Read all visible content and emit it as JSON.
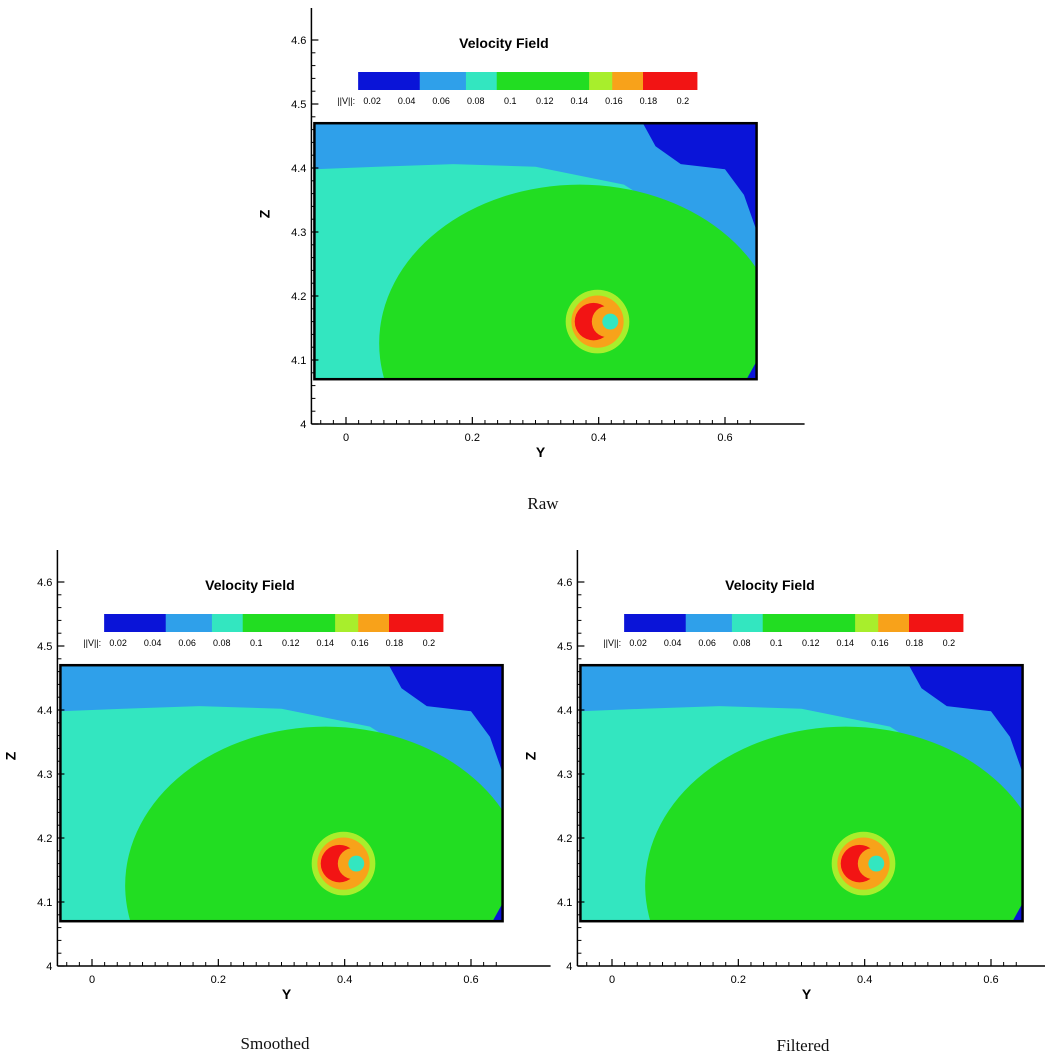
{
  "colors": {
    "levels": [
      "#0a14d8",
      "#2fa0ea",
      "#33e6c0",
      "#22dd22",
      "#a8ee2c",
      "#f8a21a",
      "#f21414"
    ],
    "frame": "#000000"
  },
  "chart_data": [
    {
      "type": "heatmap",
      "title": "Velocity Field",
      "caption": "Raw",
      "xlabel": "Y",
      "ylabel": "Z",
      "xlim": [
        -0.05,
        0.65
      ],
      "ylim": [
        4.0,
        4.65
      ],
      "field_extent": {
        "x": [
          -0.05,
          0.65
        ],
        "y": [
          4.07,
          4.47
        ]
      },
      "xticks": [
        "0",
        "0.2",
        "0.4",
        "0.6"
      ],
      "yticks": [
        "4",
        "4.1",
        "4.2",
        "4.3",
        "4.4",
        "4.5",
        "4.6"
      ],
      "colorbar": {
        "variable_label": "||V||:",
        "tick_labels": [
          "0.02",
          "0.04",
          "0.06",
          "0.08",
          "0.1",
          "0.12",
          "0.14",
          "0.16",
          "0.18",
          "0.2"
        ],
        "band_bounds": [
          0.0,
          0.04,
          0.07,
          0.09,
          0.15,
          0.165,
          0.185,
          0.22
        ]
      },
      "core_center": {
        "y": 0.395,
        "z": 4.16
      }
    },
    {
      "type": "heatmap",
      "title": "Velocity Field",
      "caption": "Smoothed",
      "xlabel": "Y",
      "ylabel": "Z",
      "xlim": [
        -0.05,
        0.65
      ],
      "ylim": [
        4.0,
        4.65
      ],
      "field_extent": {
        "x": [
          -0.05,
          0.65
        ],
        "y": [
          4.07,
          4.47
        ]
      },
      "xticks": [
        "0",
        "0.2",
        "0.4",
        "0.6"
      ],
      "yticks": [
        "4",
        "4.1",
        "4.2",
        "4.3",
        "4.4",
        "4.5",
        "4.6"
      ],
      "colorbar": {
        "variable_label": "||V||:",
        "tick_labels": [
          "0.02",
          "0.04",
          "0.06",
          "0.08",
          "0.1",
          "0.12",
          "0.14",
          "0.16",
          "0.18",
          "0.2"
        ],
        "band_bounds": [
          0.0,
          0.04,
          0.07,
          0.09,
          0.15,
          0.165,
          0.185,
          0.22
        ]
      },
      "core_center": {
        "y": 0.395,
        "z": 4.16
      }
    },
    {
      "type": "heatmap",
      "title": "Velocity Field",
      "caption": "Filtered",
      "xlabel": "Y",
      "ylabel": "Z",
      "xlim": [
        -0.05,
        0.65
      ],
      "ylim": [
        4.0,
        4.65
      ],
      "field_extent": {
        "x": [
          -0.05,
          0.65
        ],
        "y": [
          4.07,
          4.47
        ]
      },
      "xticks": [
        "0",
        "0.2",
        "0.4",
        "0.6"
      ],
      "yticks": [
        "4",
        "4.1",
        "4.2",
        "4.3",
        "4.4",
        "4.5",
        "4.6"
      ],
      "colorbar": {
        "variable_label": "||V||:",
        "tick_labels": [
          "0.02",
          "0.04",
          "0.06",
          "0.08",
          "0.1",
          "0.12",
          "0.14",
          "0.16",
          "0.18",
          "0.2"
        ],
        "band_bounds": [
          0.0,
          0.04,
          0.07,
          0.09,
          0.15,
          0.165,
          0.185,
          0.22
        ]
      },
      "core_center": {
        "y": 0.395,
        "z": 4.16
      }
    }
  ]
}
